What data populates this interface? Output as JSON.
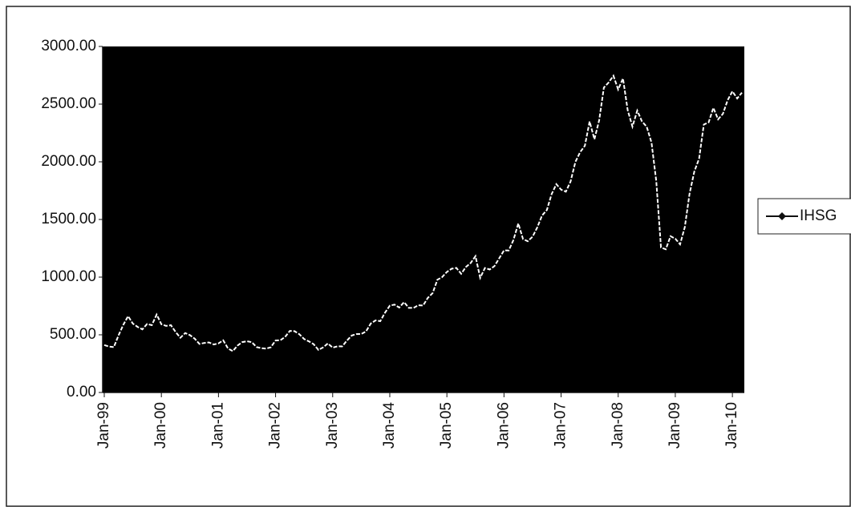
{
  "chart_data": {
    "type": "line",
    "categories": [
      "Jan-99",
      null,
      null,
      null,
      null,
      null,
      null,
      null,
      null,
      null,
      null,
      null,
      "Jan-00",
      null,
      null,
      null,
      null,
      null,
      null,
      null,
      null,
      null,
      null,
      null,
      "Jan-01",
      null,
      null,
      null,
      null,
      null,
      null,
      null,
      null,
      null,
      null,
      null,
      "Jan-02",
      null,
      null,
      null,
      null,
      null,
      null,
      null,
      null,
      null,
      null,
      null,
      "Jan-03",
      null,
      null,
      null,
      null,
      null,
      null,
      null,
      null,
      null,
      null,
      null,
      "Jan-04",
      null,
      null,
      null,
      null,
      null,
      null,
      null,
      null,
      null,
      null,
      null,
      "Jan-05",
      null,
      null,
      null,
      null,
      null,
      null,
      null,
      null,
      null,
      null,
      null,
      "Jan-06",
      null,
      null,
      null,
      null,
      null,
      null,
      null,
      null,
      null,
      null,
      null,
      "Jan-07",
      null,
      null,
      null,
      null,
      null,
      null,
      null,
      null,
      null,
      null,
      null,
      "Jan-08",
      null,
      null,
      null,
      null,
      null,
      null,
      null,
      null,
      null,
      null,
      null,
      "Jan-09",
      null,
      null,
      null,
      null,
      null,
      null,
      null,
      null,
      null,
      null,
      null,
      "Jan-10",
      null,
      null
    ],
    "series": [
      {
        "name": "IHSG",
        "color": "#ffffff",
        "values": [
          411,
          398,
          393,
          495,
          586,
          662,
          597,
          569,
          547,
          594,
          583,
          676,
          592,
          577,
          583,
          524,
          474,
          515,
          497,
          467,
          421,
          429,
          434,
          416,
          426,
          452,
          381,
          358,
          406,
          437,
          444,
          436,
          393,
          384,
          380,
          392,
          451,
          453,
          481,
          534,
          531,
          505,
          463,
          443,
          419,
          369,
          391,
          425,
          389,
          400,
          399,
          451,
          494,
          506,
          507,
          529,
          597,
          625,
          618,
          692,
          753,
          762,
          736,
          783,
          733,
          733,
          756,
          754,
          820,
          861,
          977,
          1000,
          1045,
          1073,
          1080,
          1029,
          1088,
          1122,
          1182,
          994,
          1079,
          1066,
          1096,
          1163,
          1232,
          1231,
          1323,
          1465,
          1330,
          1311,
          1351,
          1432,
          1534,
          1582,
          1719,
          1806,
          1758,
          1741,
          1830,
          1999,
          2084,
          2139,
          2349,
          2195,
          2359,
          2644,
          2688,
          2746,
          2627,
          2722,
          2447,
          2305,
          2444,
          2350,
          2304,
          2166,
          1833,
          1257,
          1242,
          1355,
          1333,
          1285,
          1434,
          1723,
          1917,
          2027,
          2323,
          2342,
          2468,
          2368,
          2416,
          2534,
          2611,
          2549,
          2600
        ]
      }
    ],
    "ylim": [
      0,
      3000
    ],
    "yticks": [
      {
        "value": 0,
        "label": "0.00"
      },
      {
        "value": 500,
        "label": "500.00"
      },
      {
        "value": 1000,
        "label": "1000.00"
      },
      {
        "value": 1500,
        "label": "1500.00"
      },
      {
        "value": 2000,
        "label": "2000.00"
      },
      {
        "value": 2500,
        "label": "2500.00"
      },
      {
        "value": 3000,
        "label": "3000.00"
      }
    ],
    "plot_background": "#000000",
    "grid": false,
    "legend": "right"
  }
}
